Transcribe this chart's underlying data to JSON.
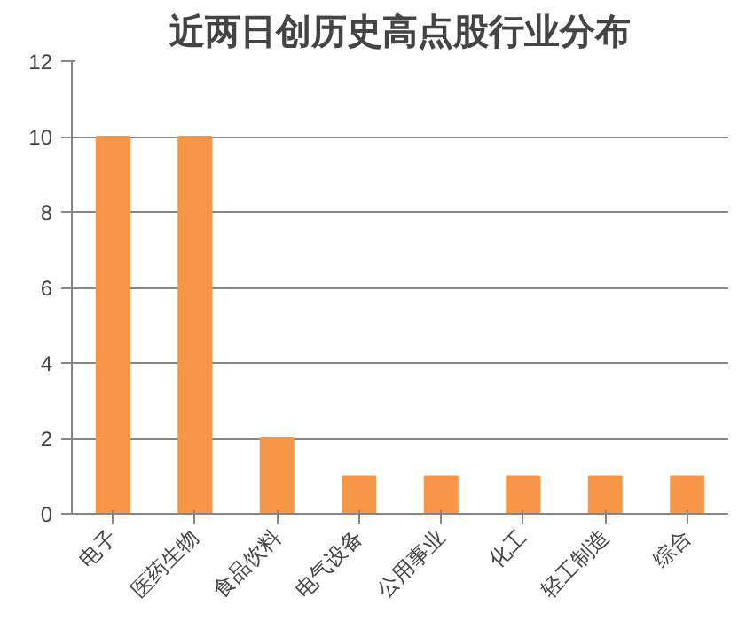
{
  "chart_data": {
    "type": "bar",
    "title": "近两日创历史高点股行业分布",
    "categories": [
      "电子",
      "医药生物",
      "食品饮料",
      "电气设备",
      "公用事业",
      "化工",
      "轻工制造",
      "综合"
    ],
    "values": [
      10,
      10,
      2,
      1,
      1,
      1,
      1,
      1
    ],
    "color": "#f79646",
    "ylim": [
      0,
      12
    ],
    "yticks": [
      0,
      2,
      4,
      6,
      8,
      10,
      12
    ],
    "grid": "y"
  }
}
